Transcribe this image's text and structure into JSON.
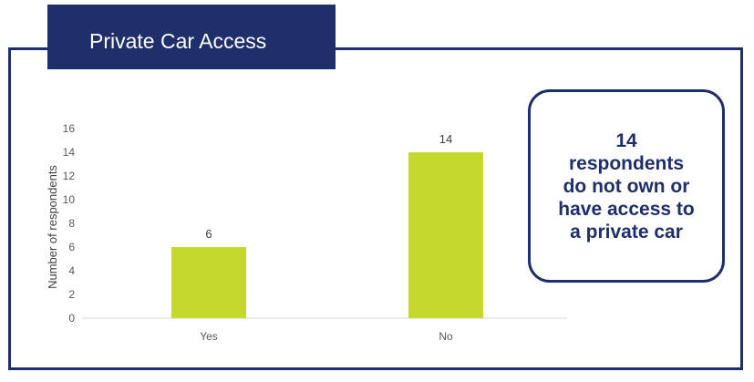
{
  "header": {
    "title": "Private Car Access"
  },
  "callout": {
    "text": "14 respondents do not own or have access to a private car"
  },
  "colors": {
    "navy": "#1f2f6b",
    "bar": "#c4d82d"
  },
  "chart_data": {
    "type": "bar",
    "categories": [
      "Yes",
      "No"
    ],
    "values": [
      6,
      14
    ],
    "data_labels": [
      "6",
      "14"
    ],
    "ylabel": "Number of respondents",
    "xlabel": "",
    "ylim": [
      0,
      16
    ],
    "yticks": [
      0,
      2,
      4,
      6,
      8,
      10,
      12,
      14,
      16
    ],
    "grid": false,
    "legend": "none"
  }
}
